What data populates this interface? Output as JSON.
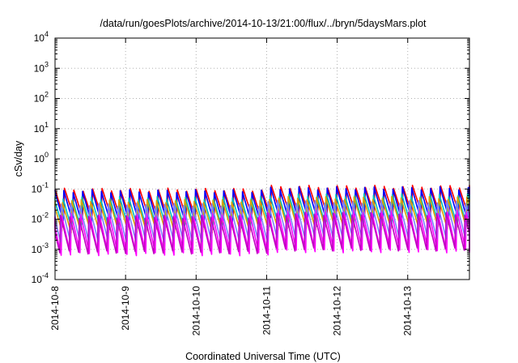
{
  "chart_data": {
    "type": "line",
    "title": "/data/run/goesPlots/archive/2014-10-13/21:00/flux/../bryn/5daysMars.plot",
    "xlabel": "Coordinated Universal Time (UTC)",
    "ylabel": "cSv/day",
    "x_range": [
      "2014-10-08",
      "2014-10-13T21:00"
    ],
    "x_ticks": [
      "2014-10-8",
      "2014-10-9",
      "2014-10-10",
      "2014-10-11",
      "2014-10-12",
      "2014-10-13"
    ],
    "y_scale": "log",
    "ylim": [
      0.0001,
      10000
    ],
    "y_ticks": [
      {
        "base": "10",
        "exp": "-4"
      },
      {
        "base": "10",
        "exp": "-3"
      },
      {
        "base": "10",
        "exp": "-2"
      },
      {
        "base": "10",
        "exp": "-1"
      },
      {
        "base": "10",
        "exp": "0"
      },
      {
        "base": "10",
        "exp": "1"
      },
      {
        "base": "10",
        "exp": "2"
      },
      {
        "base": "10",
        "exp": "3"
      },
      {
        "base": "10",
        "exp": "4"
      }
    ],
    "grid": true,
    "pattern": "sawtooth",
    "periods_per_day": 7.5,
    "series": [
      {
        "color": "#ff0000",
        "peak": 0.095,
        "trough": 0.012
      },
      {
        "color": "#0000ff",
        "peak": 0.085,
        "trough": 0.008
      },
      {
        "color": "#00bfbf",
        "peak": 0.05,
        "trough": 0.005
      },
      {
        "color": "#d4a400",
        "peak": 0.04,
        "trough": 0.004
      },
      {
        "color": "#ff00ff",
        "peak": 0.014,
        "trough": 0.0007
      },
      {
        "color": "#7f7fff",
        "peak": 0.03,
        "trough": 0.002
      },
      {
        "color": "#c000c0",
        "peak": 0.012,
        "trough": 0.0008
      }
    ]
  }
}
